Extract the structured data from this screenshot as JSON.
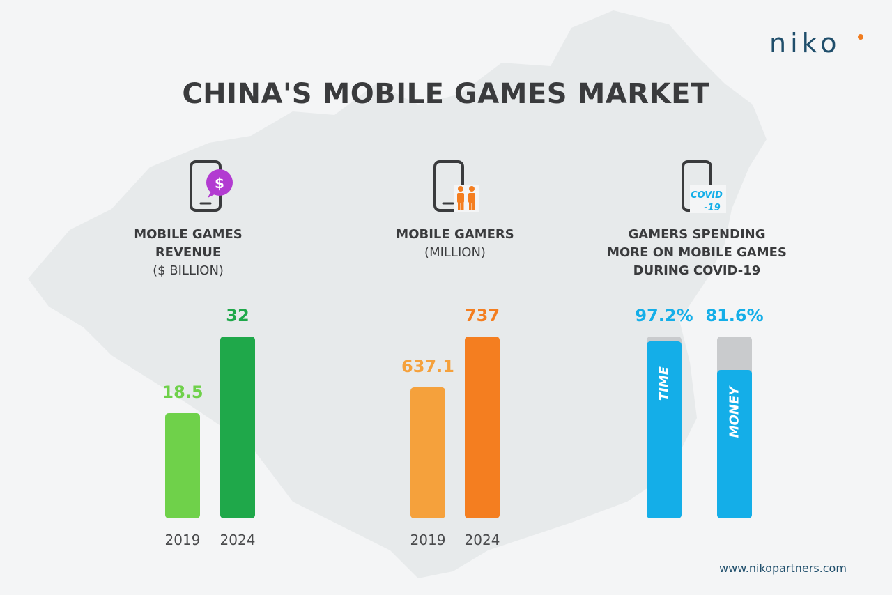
{
  "logo": {
    "text": "niko"
  },
  "title": "CHINA'S MOBILE GAMES MARKET",
  "url": "www.nikopartners.com",
  "icons": {
    "revenue": "phone-dollar-icon",
    "gamers": "phone-people-icon",
    "covid": "phone-covid-icon",
    "covid_text_1": "COVID",
    "covid_text_2": "-19"
  },
  "colors": {
    "green_light": "#6fd14a",
    "green_dark": "#1fa84a",
    "orange_light": "#f5a13c",
    "orange_dark": "#f47e20",
    "blue": "#14aee8",
    "gray": "#c9cbcd",
    "purple": "#b23bd1"
  },
  "chart_data": [
    {
      "type": "bar",
      "title_line1": "MOBILE GAMES REVENUE",
      "title_line2": "($ BILLION)",
      "categories": [
        "2019",
        "2024"
      ],
      "values": [
        18.5,
        32
      ],
      "value_labels": [
        "18.5",
        "32"
      ]
    },
    {
      "type": "bar",
      "title_line1": "MOBILE GAMERS",
      "title_line2": "(MILLION)",
      "categories": [
        "2019",
        "2024"
      ],
      "values": [
        637.1,
        737
      ],
      "value_labels": [
        "637.1",
        "737"
      ]
    },
    {
      "type": "bar",
      "title_line1": "GAMERS SPENDING",
      "title_line2": "MORE ON MOBILE GAMES",
      "title_line3": "DURING COVID-19",
      "categories": [
        "TIME",
        "MONEY"
      ],
      "values": [
        97.2,
        81.6
      ],
      "value_labels": [
        "97.2%",
        "81.6%"
      ],
      "ylim": [
        0,
        100
      ]
    }
  ]
}
